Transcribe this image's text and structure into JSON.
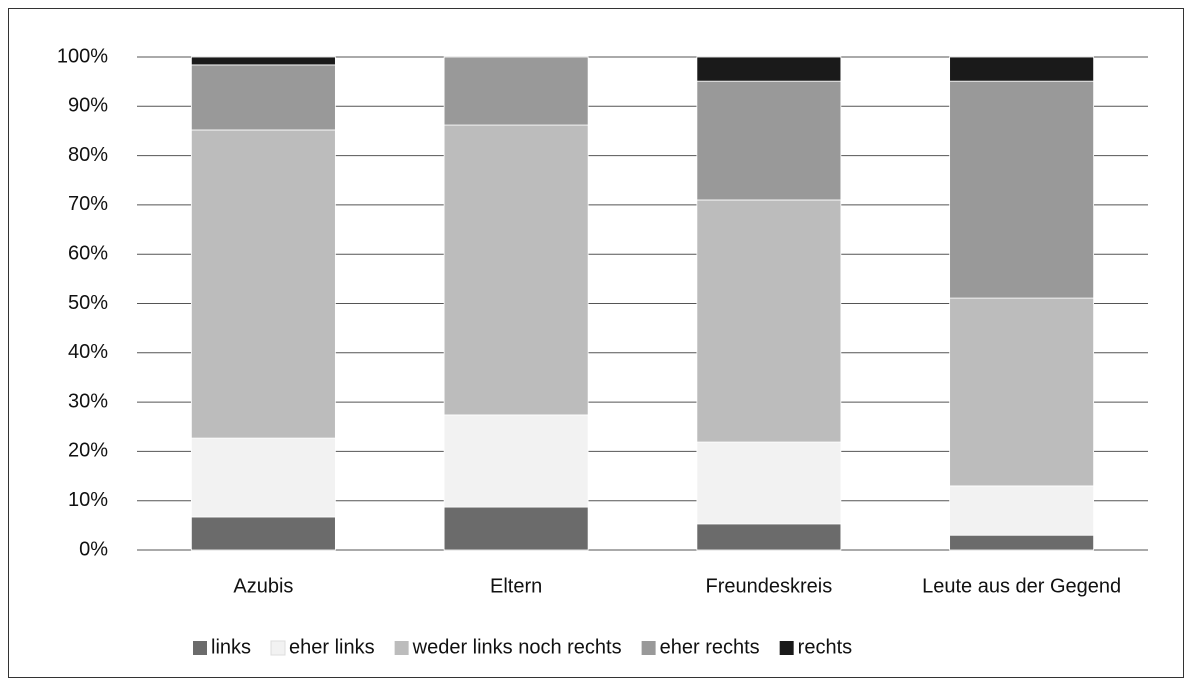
{
  "chart_data": {
    "type": "stacked_bar",
    "categories": [
      "Azubis",
      "Eltern",
      "Freundeskreis",
      "Leute aus der Gegend"
    ],
    "series": [
      {
        "name": "links",
        "color": "#6b6b6b",
        "values": [
          6.7,
          8.7,
          5.3,
          3.0
        ]
      },
      {
        "name": "eher links",
        "color": "#f2f2f2",
        "values": [
          16.0,
          18.7,
          16.6,
          10.0
        ]
      },
      {
        "name": "weder links noch rechts",
        "color": "#bcbcbc",
        "values": [
          62.5,
          58.8,
          49.1,
          38.1
        ]
      },
      {
        "name": "eher rechts",
        "color": "#999999",
        "values": [
          13.2,
          13.8,
          24.1,
          44.0
        ]
      },
      {
        "name": "rechts",
        "color": "#1a1a1a",
        "values": [
          1.6,
          0,
          4.9,
          4.9
        ]
      }
    ],
    "ylim": [
      0,
      100
    ],
    "yticks": [
      {
        "value": 0,
        "label": "0%"
      },
      {
        "value": 10,
        "label": "10%"
      },
      {
        "value": 20,
        "label": "20%"
      },
      {
        "value": 30,
        "label": "30%"
      },
      {
        "value": 40,
        "label": "40%"
      },
      {
        "value": 50,
        "label": "50%"
      },
      {
        "value": 60,
        "label": "60%"
      },
      {
        "value": 70,
        "label": "70%"
      },
      {
        "value": 80,
        "label": "80%"
      },
      {
        "value": 90,
        "label": "90%"
      },
      {
        "value": 100,
        "label": "100%"
      }
    ],
    "grid": true,
    "legend": "bottom"
  }
}
